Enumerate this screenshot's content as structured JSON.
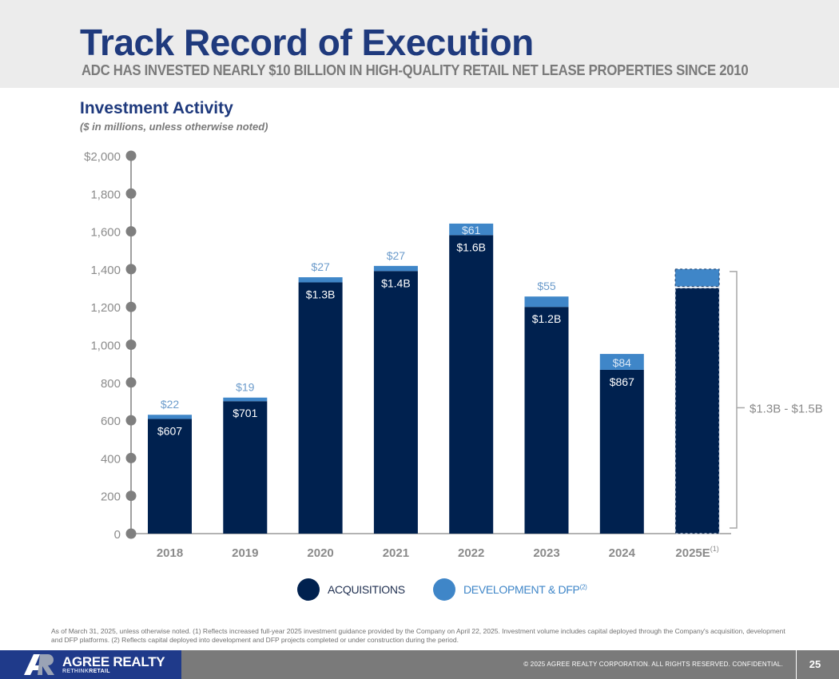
{
  "header": {
    "title": "Track Record of Execution",
    "subtitle": "ADC HAS INVESTED NEARLY $10 BILLION IN HIGH-QUALITY RETAIL NET LEASE PROPERTIES SINCE 2010"
  },
  "section": {
    "title": "Investment Activity",
    "subtitle": "($ in millions, unless otherwise noted)"
  },
  "colors": {
    "acquisitions": "#00214f",
    "development": "#3f86c8",
    "axis": "#8a8a8a",
    "brand": "#1f3a8a"
  },
  "chart_data": {
    "type": "bar",
    "stacked": true,
    "title": "Investment Activity",
    "subtitle": "($ in millions, unless otherwise noted)",
    "xlabel": "",
    "ylabel": "",
    "ylim": [
      0,
      2000
    ],
    "yticks": [
      0,
      200,
      400,
      600,
      800,
      1000,
      1200,
      1400,
      1600,
      1800,
      2000
    ],
    "ytick_labels": [
      "0",
      "200",
      "400",
      "600",
      "800",
      "1,000",
      "1,200",
      "1,400",
      "1,600",
      "1,800",
      "$2,000"
    ],
    "categories": [
      "2018",
      "2019",
      "2020",
      "2021",
      "2022",
      "2023",
      "2024",
      "2025E"
    ],
    "category_superscripts": [
      "",
      "",
      "",
      "",
      "",
      "",
      "",
      "(1)"
    ],
    "series": [
      {
        "name": "ACQUISITIONS",
        "values": [
          607,
          701,
          1330,
          1390,
          1580,
          1200,
          867,
          1300
        ],
        "labels": [
          "$607",
          "$701",
          "$1.3B",
          "$1.4B",
          "$1.6B",
          "$1.2B",
          "$867",
          ""
        ]
      },
      {
        "name": "DEVELOPMENT & DFP",
        "superscript": "(2)",
        "values": [
          22,
          19,
          27,
          27,
          61,
          55,
          84,
          100
        ],
        "labels": [
          "$22",
          "$19",
          "$27",
          "$27",
          "$61",
          "$55",
          "$84",
          ""
        ]
      }
    ],
    "estimated_categories": [
      "2025E"
    ],
    "annotation": {
      "category": "2025E",
      "text": "$1.3B - $1.5B",
      "range": [
        1300,
        1500
      ]
    },
    "legend": {
      "position": "bottom-center",
      "entries": [
        "ACQUISITIONS",
        "DEVELOPMENT & DFP"
      ]
    },
    "grid": false
  },
  "footnote": "As of March 31, 2025, unless otherwise noted. (1) Reflects increased full-year 2025 investment guidance provided by the Company on April 22, 2025. Investment volume includes capital deployed through the Company's acquisition, development and DFP platforms. (2) Reflects capital deployed into development and DFP projects completed or under construction during the period.",
  "footer": {
    "logo_text": "AGREE REALTY",
    "logo_tag_light": "RETHINK",
    "logo_tag_bold": "RETAIL",
    "copyright": "© 2025 AGREE REALTY CORPORATION. ALL RIGHTS RESERVED. CONFIDENTIAL.",
    "page_number": "25"
  }
}
